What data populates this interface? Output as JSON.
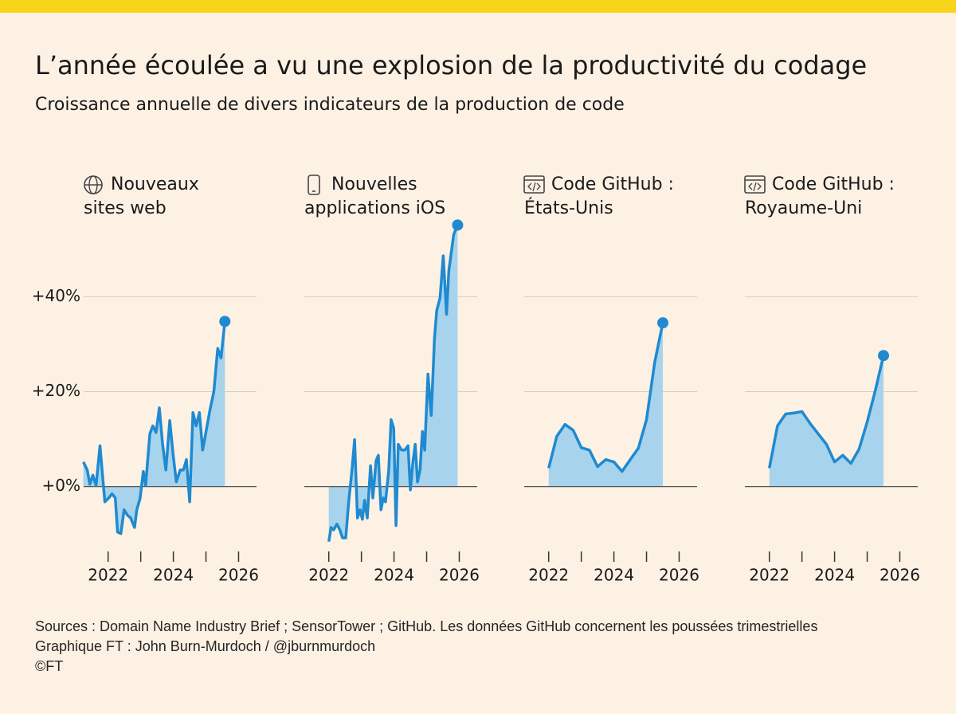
{
  "title": "L’année écoulée a vu une explosion de la productivité du codage",
  "subtitle": "Croissance annuelle de divers indicateurs de la production de code",
  "footer": [
    "Sources : Domain Name Industry Brief ; SensorTower ; GitHub. Les données GitHub concernent les poussées trimestrielles",
    "Graphique FT : John Burn-Murdoch / @jburnmurdoch",
    "©FT"
  ],
  "chart_data": [
    {
      "type": "area",
      "title": [
        "Nouveaux",
        "sites web"
      ],
      "icon": "globe",
      "color": "#1f8ad0",
      "fill": "#a8d3ec",
      "xlim": [
        2021.25,
        2026.55
      ],
      "xticks": [
        2022,
        2024,
        2026
      ],
      "xminor": [
        2023,
        2025
      ],
      "ylim": [
        -15,
        55
      ],
      "yticks": [
        {
          "value": 0,
          "label": "+0%"
        },
        {
          "value": 20,
          "label": "+20%"
        },
        {
          "value": 40,
          "label": "+40%"
        }
      ],
      "grid": true,
      "x": [
        2021.24,
        2021.36,
        2021.44,
        2021.53,
        2021.63,
        2021.75,
        2021.9,
        2022.02,
        2022.12,
        2022.22,
        2022.29,
        2022.39,
        2022.49,
        2022.59,
        2022.69,
        2022.81,
        2022.88,
        2022.98,
        2023.08,
        2023.15,
        2023.28,
        2023.37,
        2023.47,
        2023.57,
        2023.67,
        2023.77,
        2023.89,
        2023.99,
        2024.09,
        2024.21,
        2024.31,
        2024.4,
        2024.5,
        2024.6,
        2024.7,
        2024.8,
        2024.9,
        2024.99,
        2025.12,
        2025.24,
        2025.36,
        2025.46,
        2025.58
      ],
      "values": [
        5.2,
        3.5,
        0.5,
        2.4,
        0.2,
        8.6,
        -3.2,
        -2.4,
        -1.5,
        -2.4,
        -9.6,
        -9.9,
        -4.9,
        -6.0,
        -6.6,
        -8.6,
        -4.9,
        -2.5,
        3.2,
        0.3,
        11.1,
        12.8,
        11.4,
        16.6,
        8.9,
        3.5,
        13.9,
        6.9,
        1.0,
        3.5,
        3.5,
        5.7,
        -3.2,
        15.6,
        12.8,
        15.6,
        7.7,
        11.1,
        16.1,
        20.0,
        29.1,
        27.1,
        34.8
      ]
    },
    {
      "type": "area",
      "title": [
        "Nouvelles",
        "applications iOS"
      ],
      "icon": "phone",
      "color": "#1f8ad0",
      "fill": "#a8d3ec",
      "xlim": [
        2021.25,
        2026.55
      ],
      "xticks": [
        2022,
        2024,
        2026
      ],
      "xminor": [
        2023,
        2025
      ],
      "ylim": [
        -15,
        55
      ],
      "yticks": [
        0,
        20,
        40
      ],
      "grid": true,
      "x": [
        2022.0,
        2022.07,
        2022.15,
        2022.25,
        2022.34,
        2022.42,
        2022.52,
        2022.61,
        2022.71,
        2022.79,
        2022.88,
        2022.96,
        2023.03,
        2023.1,
        2023.18,
        2023.28,
        2023.35,
        2023.45,
        2023.52,
        2023.6,
        2023.67,
        2023.74,
        2023.84,
        2023.91,
        2023.99,
        2024.06,
        2024.13,
        2024.23,
        2024.33,
        2024.43,
        2024.5,
        2024.58,
        2024.65,
        2024.72,
        2024.8,
        2024.87,
        2024.94,
        2025.04,
        2025.14,
        2025.24,
        2025.31,
        2025.41,
        2025.51,
        2025.61,
        2025.68,
        2025.83,
        2025.95
      ],
      "values": [
        -11.6,
        -8.6,
        -9.1,
        -7.9,
        -9.1,
        -10.8,
        -10.8,
        -3.2,
        3.5,
        9.9,
        -6.6,
        -4.9,
        -6.9,
        -2.9,
        -6.6,
        4.4,
        -2.4,
        5.5,
        6.6,
        -4.9,
        -2.4,
        -3.2,
        3.5,
        14.1,
        12.3,
        -8.2,
        8.9,
        7.7,
        7.7,
        8.6,
        -0.7,
        5.2,
        8.9,
        1.0,
        3.5,
        11.6,
        7.7,
        23.7,
        15.0,
        31.3,
        37.1,
        39.7,
        48.6,
        36.3,
        45.5,
        53.1,
        55.1
      ]
    },
    {
      "type": "area",
      "title": [
        "Code GitHub :",
        "États-Unis"
      ],
      "icon": "code",
      "color": "#1f8ad0",
      "fill": "#a8d3ec",
      "xlim": [
        2021.25,
        2026.55
      ],
      "xticks": [
        2022,
        2024,
        2026
      ],
      "xminor": [
        2023,
        2025
      ],
      "ylim": [
        -15,
        55
      ],
      "yticks": [
        0,
        20,
        40
      ],
      "grid": true,
      "x": [
        2022,
        2022.25,
        2022.5,
        2022.75,
        2023,
        2023.25,
        2023.5,
        2023.75,
        2024,
        2024.25,
        2024.5,
        2024.75,
        2025,
        2025.25,
        2025.5
      ],
      "values": [
        3.9,
        10.6,
        13.1,
        11.9,
        8.2,
        7.7,
        4.2,
        5.7,
        5.2,
        3.2,
        5.7,
        8.1,
        14.1,
        26.2,
        34.5
      ]
    },
    {
      "type": "area",
      "title": [
        "Code GitHub :",
        "Royaume-Uni"
      ],
      "icon": "code",
      "color": "#1f8ad0",
      "fill": "#a8d3ec",
      "xlim": [
        2021.25,
        2026.55
      ],
      "xticks": [
        2022,
        2024,
        2026
      ],
      "xminor": [
        2023,
        2025
      ],
      "ylim": [
        -15,
        55
      ],
      "yticks": [
        0,
        20,
        40
      ],
      "grid": true,
      "x": [
        2022,
        2022.25,
        2022.5,
        2022.75,
        2023,
        2023.25,
        2023.5,
        2023.75,
        2024,
        2024.25,
        2024.5,
        2024.75,
        2025,
        2025.25,
        2025.5
      ],
      "values": [
        3.9,
        12.8,
        15.3,
        15.5,
        15.8,
        13.3,
        11.1,
        8.9,
        5.2,
        6.6,
        4.9,
        7.9,
        13.6,
        20.3,
        27.6
      ]
    }
  ]
}
